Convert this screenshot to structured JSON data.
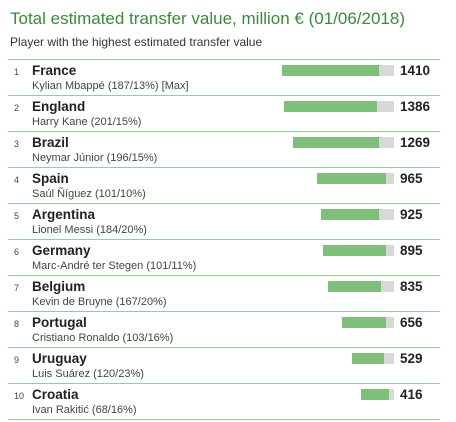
{
  "title": "Total estimated transfer value, million € (01/06/2018)",
  "subtitle": "Player with the highest estimated transfer value",
  "colors": {
    "title": "#3a8a3a",
    "bar": "#7fbf7b",
    "bar_cap": "#d8d8d8",
    "divider": "#9cc99c"
  },
  "chart_data": {
    "type": "bar",
    "orientation": "horizontal",
    "title": "Total estimated transfer value, million € (01/06/2018)",
    "subtitle": "Player with the highest estimated transfer value",
    "categories": [
      "France",
      "England",
      "Brazil",
      "Spain",
      "Argentina",
      "Germany",
      "Belgium",
      "Portugal",
      "Uruguay",
      "Croatia"
    ],
    "values": [
      1410,
      1386,
      1269,
      965,
      925,
      895,
      835,
      656,
      529,
      416
    ],
    "xlim": [
      0,
      1410
    ],
    "rows": [
      {
        "rank": "1",
        "country": "France",
        "player": "Kylian Mbappé (187/13%) [Max]",
        "value": 1410
      },
      {
        "rank": "2",
        "country": "England",
        "player": "Harry Kane (201/15%)",
        "value": 1386
      },
      {
        "rank": "3",
        "country": "Brazil",
        "player": "Neymar Júnior (196/15%)",
        "value": 1269
      },
      {
        "rank": "4",
        "country": "Spain",
        "player": "Saúl Ñíguez (101/10%)",
        "value": 965
      },
      {
        "rank": "5",
        "country": "Argentina",
        "player": "Lionel Messi (184/20%)",
        "value": 925
      },
      {
        "rank": "6",
        "country": "Germany",
        "player": "Marc-André ter Stegen (101/11%)",
        "value": 895
      },
      {
        "rank": "7",
        "country": "Belgium",
        "player": "Kevin de Bruyne (167/20%)",
        "value": 835
      },
      {
        "rank": "8",
        "country": "Portugal",
        "player": "Cristiano Ronaldo (103/16%)",
        "value": 656
      },
      {
        "rank": "9",
        "country": "Uruguay",
        "player": "Luis Suárez (120/23%)",
        "value": 529
      },
      {
        "rank": "10",
        "country": "Croatia",
        "player": "Ivan Rakitić (68/16%)",
        "value": 416
      }
    ],
    "cap_shares": [
      0.13,
      0.15,
      0.15,
      0.1,
      0.2,
      0.11,
      0.2,
      0.16,
      0.23,
      0.16
    ]
  }
}
